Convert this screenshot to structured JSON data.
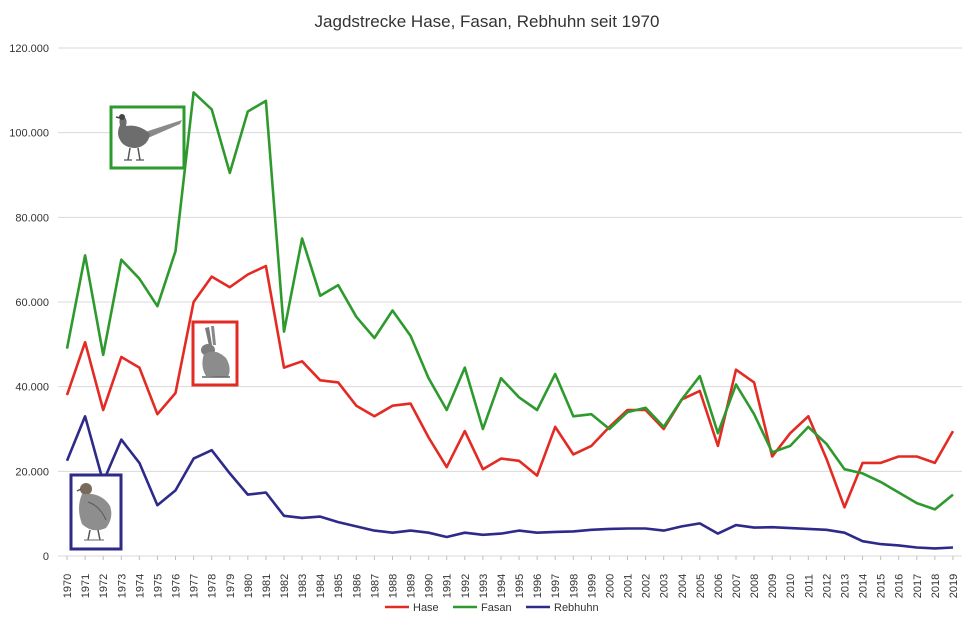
{
  "chart_data": {
    "type": "line",
    "title": "Jagdstrecke Hase, Fasan, Rebhuhn seit 1970",
    "xlabel": "",
    "ylabel": "",
    "x": [
      "1970",
      "1971",
      "1972",
      "1973",
      "1974",
      "1975",
      "1976",
      "1977",
      "1978",
      "1979",
      "1980",
      "1981",
      "1982",
      "1983",
      "1984",
      "1985",
      "1986",
      "1987",
      "1988",
      "1989",
      "1990",
      "1991",
      "1992",
      "1993",
      "1994",
      "1995",
      "1996",
      "1997",
      "1998",
      "1999",
      "2000",
      "2001",
      "2002",
      "2003",
      "2004",
      "2005",
      "2006",
      "2007",
      "2008",
      "2009",
      "2010",
      "2011",
      "2012",
      "2013",
      "2014",
      "2015",
      "2016",
      "2017",
      "2018",
      "2019"
    ],
    "ylim": [
      0,
      120000
    ],
    "yticks": [
      0,
      20000,
      40000,
      60000,
      80000,
      100000,
      120000
    ],
    "ytick_labels": [
      "0",
      "20.000",
      "40.000",
      "60.000",
      "80.000",
      "100.000",
      "120.000"
    ],
    "grid": true,
    "legend_position": "bottom",
    "series": [
      {
        "name": "Hase",
        "color": "#e32b24",
        "values": [
          38000,
          50500,
          34500,
          47000,
          44500,
          33500,
          38500,
          60000,
          66000,
          63500,
          66500,
          68500,
          44500,
          46000,
          41500,
          41000,
          35500,
          33000,
          35500,
          36000,
          28000,
          21000,
          29500,
          20500,
          23000,
          22500,
          19000,
          30500,
          24000,
          26000,
          30500,
          34500,
          34500,
          30000,
          37000,
          39000,
          26000,
          44000,
          41000,
          23500,
          29000,
          33000,
          23000,
          11500,
          22000,
          22000,
          23500,
          23500,
          22000,
          29500
        ]
      },
      {
        "name": "Fasan",
        "color": "#2e9a2e",
        "values": [
          49000,
          71000,
          47500,
          70000,
          65500,
          59000,
          72000,
          109500,
          105500,
          90500,
          105000,
          107500,
          53000,
          75000,
          61500,
          64000,
          56500,
          51500,
          58000,
          52000,
          42000,
          34500,
          44500,
          30000,
          42000,
          37500,
          34500,
          43000,
          33000,
          33500,
          30000,
          34000,
          35000,
          30500,
          37000,
          42500,
          29000,
          40500,
          33500,
          24500,
          26000,
          30500,
          26500,
          20500,
          19500,
          17500,
          15000,
          12500,
          11000,
          14500
        ]
      },
      {
        "name": "Rebhuhn",
        "color": "#2e2a8a",
        "values": [
          22500,
          33000,
          17500,
          27500,
          22000,
          12000,
          15500,
          23000,
          25000,
          19500,
          14500,
          15000,
          9500,
          9000,
          9300,
          8000,
          7000,
          6000,
          5500,
          6000,
          5500,
          4500,
          5500,
          5000,
          5300,
          6000,
          5500,
          5700,
          5800,
          6200,
          6400,
          6500,
          6500,
          6000,
          7000,
          7700,
          5300,
          7300,
          6700,
          6800,
          6600,
          6400,
          6200,
          5500,
          3500,
          2800,
          2500,
          2000,
          1800,
          2000
        ]
      }
    ]
  },
  "icons": {
    "pheasant": "pheasant-icon",
    "hare": "hare-icon",
    "partridge": "partridge-icon"
  }
}
